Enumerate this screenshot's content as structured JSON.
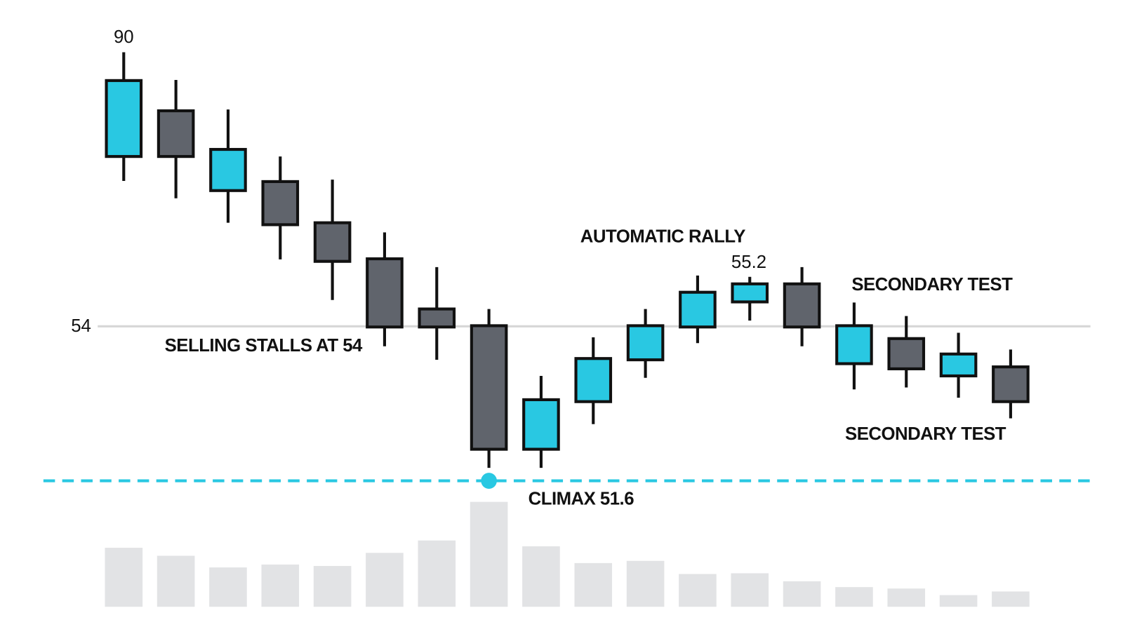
{
  "chart_data": {
    "type": "candlestick",
    "ylim": [
      51.4,
      58.6
    ],
    "yticks": [
      54
    ],
    "grid": true,
    "up_color": "#29c8e2",
    "down_color": "#60646c",
    "series": {
      "open": [
        56.64,
        57.35,
        56.11,
        56.25,
        55.61,
        55.05,
        54.27,
        54.01,
        52.09,
        52.83,
        53.48,
        53.99,
        54.38,
        54.66,
        53.42,
        53.81,
        53.23,
        53.37
      ],
      "high": [
        58.26,
        57.83,
        57.37,
        56.64,
        56.28,
        55.46,
        54.92,
        54.27,
        53.23,
        53.83,
        54.27,
        54.79,
        54.77,
        54.92,
        54.37,
        54.16,
        53.9,
        53.64
      ],
      "low": [
        56.26,
        55.99,
        55.61,
        55.04,
        54.41,
        53.69,
        53.48,
        51.8,
        51.8,
        52.48,
        53.2,
        53.74,
        54.09,
        53.69,
        53.02,
        53.05,
        52.89,
        52.57
      ],
      "close": [
        57.82,
        56.64,
        56.75,
        55.58,
        55.01,
        53.99,
        53.99,
        52.09,
        52.86,
        53.5,
        54.01,
        54.53,
        54.66,
        53.99,
        54.01,
        53.34,
        53.57,
        52.83
      ]
    },
    "volume": [
      81,
      70,
      54,
      58,
      56,
      74,
      91,
      144,
      83,
      60,
      63,
      45,
      46,
      35,
      27,
      25,
      16,
      21
    ],
    "volume_ylim": [
      0,
      150
    ],
    "volume_color": "#e2e3e5",
    "support_level": 51.6,
    "support_color": "#29c8e2",
    "climax_index": 7,
    "annotations": [
      "90",
      "SELLING STALLS AT 54",
      "AUTOMATIC RALLY",
      "55.2",
      "SECONDARY TEST",
      "SECONDARY TEST",
      "CLIMAX 51.6"
    ]
  }
}
